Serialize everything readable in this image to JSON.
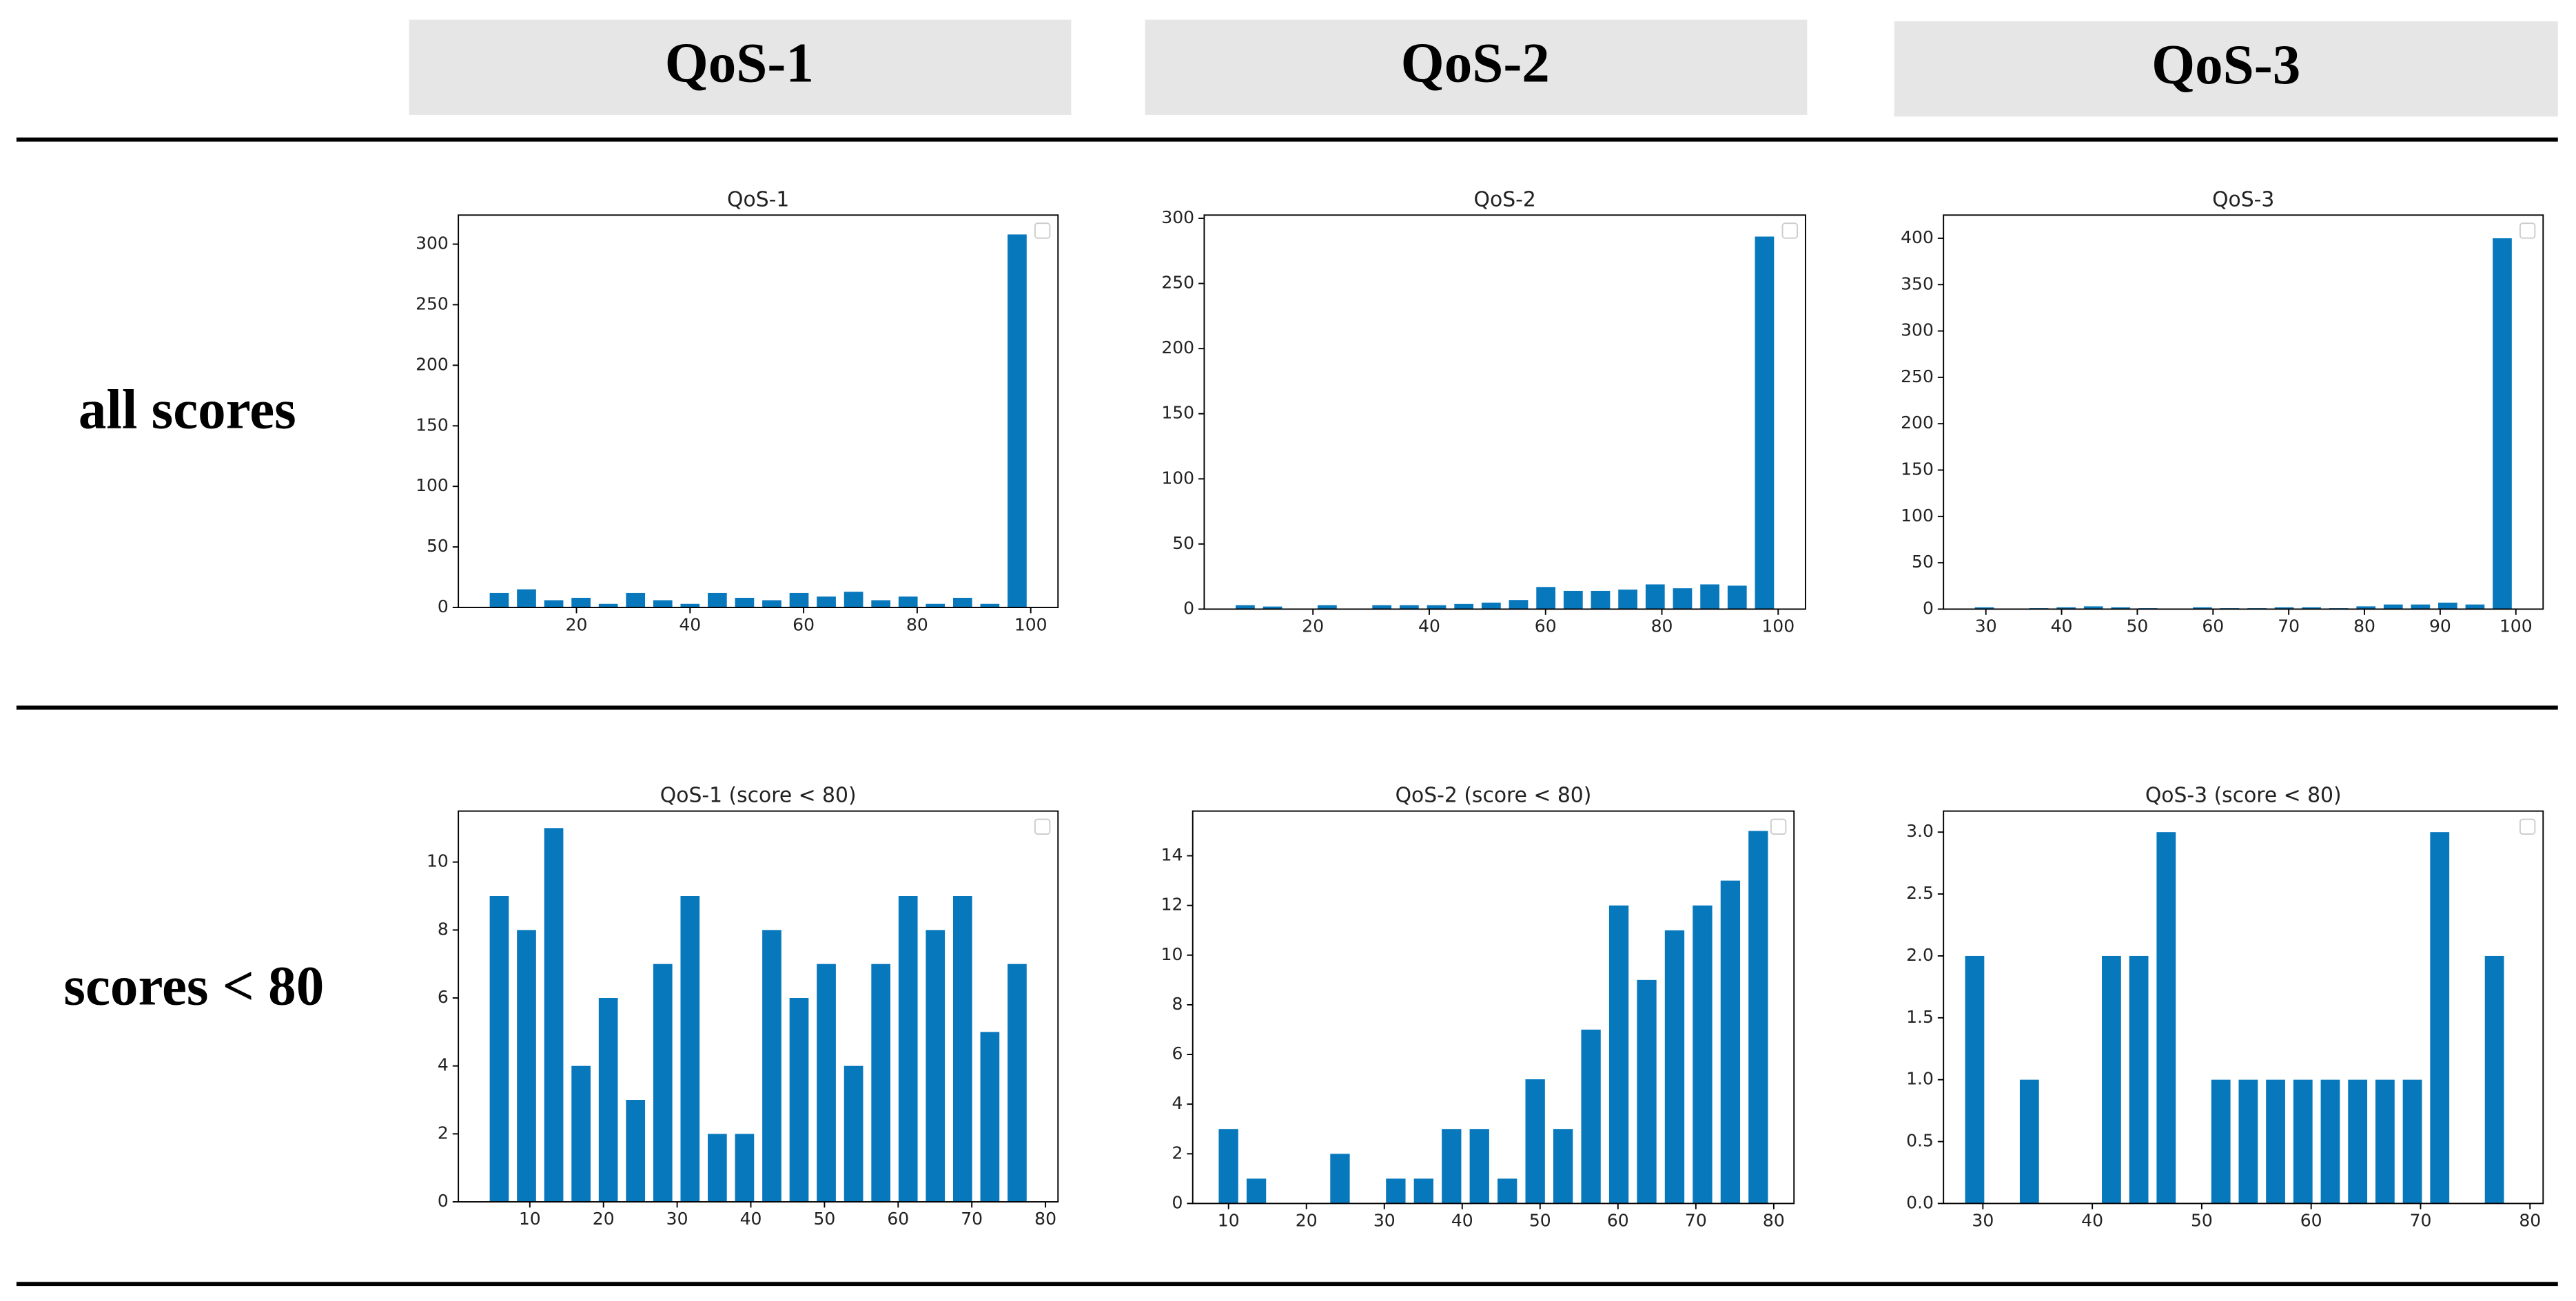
{
  "columns": [
    "QoS-1",
    "QoS-2",
    "QoS-3"
  ],
  "rows": [
    "all scores",
    "scores < 80"
  ],
  "chart_data": [
    {
      "type": "histogram",
      "title": "QoS-1",
      "color": "#0878bd",
      "legend": "upper right",
      "bins": [
        4,
        8.8,
        13.6,
        18.4,
        23.2,
        28,
        32.8,
        37.6,
        42.4,
        47.2,
        52,
        56.8,
        61.6,
        66.4,
        71.2,
        76,
        80.8,
        85.6,
        90.4,
        95.2,
        100
      ],
      "values": [
        12,
        15,
        6,
        8,
        3,
        12,
        6,
        3,
        12,
        8,
        6,
        12,
        9,
        13,
        6,
        9,
        3,
        8,
        3,
        308
      ],
      "xlim": [
        -0.8,
        104.8
      ],
      "xticks": [
        20,
        40,
        60,
        80,
        100
      ],
      "ylim": [
        0,
        324
      ],
      "yticks": [
        0,
        50,
        100,
        150,
        200,
        250,
        300
      ]
    },
    {
      "type": "histogram",
      "title": "QoS-2",
      "color": "#0878bd",
      "legend": "upper right",
      "bins": [
        6,
        10.7,
        15.4,
        20.1,
        24.8,
        29.5,
        34.2,
        38.9,
        43.6,
        48.3,
        53,
        57.7,
        62.4,
        67.1,
        71.8,
        76.5,
        81.2,
        85.9,
        90.6,
        95.3,
        100
      ],
      "values": [
        3,
        2,
        0,
        3,
        0,
        3,
        3,
        3,
        4,
        5,
        7,
        17,
        14,
        14,
        15,
        19,
        16,
        19,
        18,
        286
      ],
      "xlim": [
        1.3,
        104.7
      ],
      "xticks": [
        20,
        40,
        60,
        80,
        100
      ],
      "ylim": [
        0,
        302.5
      ],
      "yticks": [
        0,
        50,
        100,
        150,
        200,
        250,
        300
      ]
    },
    {
      "type": "histogram",
      "title": "QoS-3",
      "color": "#0878bd",
      "legend": "upper right",
      "bins": [
        28,
        31.6,
        35.2,
        38.8,
        42.4,
        46,
        49.6,
        53.2,
        56.8,
        60.4,
        64,
        67.6,
        71.2,
        74.8,
        78.4,
        82,
        85.6,
        89.2,
        92.8,
        96.4,
        100
      ],
      "values": [
        2,
        0,
        1,
        2,
        3,
        2,
        1,
        0,
        2,
        1,
        1,
        2,
        2,
        1,
        3,
        5,
        5,
        7,
        5,
        400
      ],
      "xlim": [
        24.4,
        103.6
      ],
      "xticks": [
        30,
        40,
        50,
        60,
        70,
        80,
        90,
        100
      ],
      "ylim": [
        0,
        425
      ],
      "yticks": [
        0,
        50,
        100,
        150,
        200,
        250,
        300,
        350,
        400
      ]
    },
    {
      "type": "histogram",
      "title": "QoS-1 (score < 80)",
      "color": "#0878bd",
      "legend": "upper right",
      "bins": [
        4,
        7.7,
        11.4,
        15.1,
        18.8,
        22.5,
        26.2,
        29.9,
        33.6,
        37.3,
        41,
        44.7,
        48.4,
        52.1,
        55.8,
        59.5,
        63.2,
        66.9,
        70.6,
        74.3,
        78
      ],
      "values": [
        9,
        8,
        11,
        4,
        6,
        3,
        7,
        9,
        2,
        2,
        8,
        6,
        7,
        4,
        7,
        9,
        8,
        9,
        5,
        7
      ],
      "xlim": [
        0.3,
        81.7
      ],
      "xticks": [
        10,
        20,
        30,
        40,
        50,
        60,
        70,
        80
      ],
      "ylim": [
        0,
        11.5
      ],
      "yticks": [
        0,
        2,
        4,
        6,
        8,
        10
      ]
    },
    {
      "type": "histogram",
      "title": "QoS-2 (score < 80)",
      "color": "#0878bd",
      "legend": "upper right",
      "bins": [
        8.2,
        11.78,
        15.36,
        18.94,
        22.52,
        26.1,
        29.68,
        33.26,
        36.84,
        40.42,
        44,
        47.58,
        51.16,
        54.74,
        58.32,
        61.9,
        65.48,
        69.06,
        72.64,
        76.22,
        79.8
      ],
      "values": [
        3,
        1,
        0,
        0,
        2,
        0,
        1,
        1,
        3,
        3,
        1,
        5,
        3,
        7,
        12,
        9,
        11,
        12,
        13,
        15
      ],
      "xlim": [
        5.4,
        82.6
      ],
      "xticks": [
        10,
        20,
        30,
        40,
        50,
        60,
        70,
        80
      ],
      "ylim": [
        0,
        15.8
      ],
      "yticks": [
        0,
        2,
        4,
        6,
        8,
        10,
        12,
        14
      ]
    },
    {
      "type": "histogram",
      "title": "QoS-3 (score < 80)",
      "color": "#0878bd",
      "legend": "upper right",
      "bins": [
        28,
        30.5,
        33,
        35.5,
        38,
        40.5,
        43,
        45.5,
        48,
        50.5,
        53,
        55.5,
        58,
        60.5,
        63,
        65.5,
        68,
        70.5,
        73,
        75.5,
        78
      ],
      "values": [
        2,
        0,
        1,
        0,
        0,
        2,
        2,
        3,
        0,
        1,
        1,
        1,
        1,
        1,
        1,
        1,
        1,
        3,
        0,
        2
      ],
      "xlim": [
        26.4,
        81.2
      ],
      "xticks": [
        30,
        40,
        50,
        60,
        70,
        80
      ],
      "ylim": [
        0,
        3.17
      ],
      "yticks": [
        {
          "value": 0,
          "label": "0.0"
        },
        {
          "value": 0.5,
          "label": "0.5"
        },
        {
          "value": 1,
          "label": "1.0"
        },
        {
          "value": 1.5,
          "label": "1.5"
        },
        {
          "value": 2,
          "label": "2.0"
        },
        {
          "value": 2.5,
          "label": "2.5"
        },
        {
          "value": 3,
          "label": "3.0"
        }
      ]
    }
  ]
}
